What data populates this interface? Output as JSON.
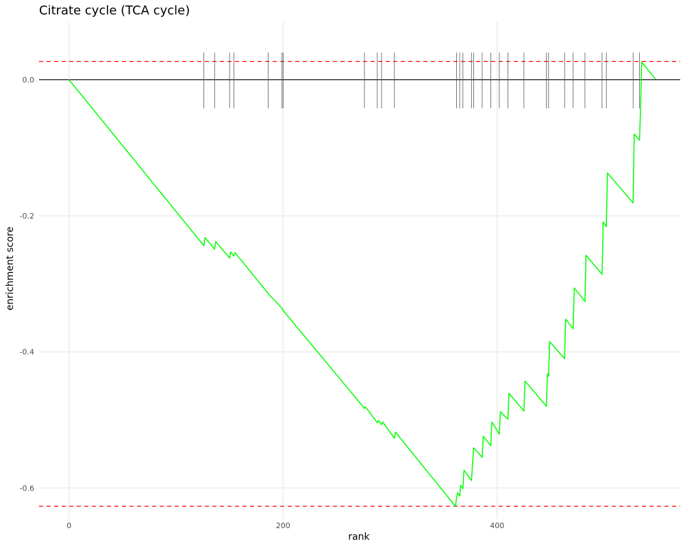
{
  "chart_data": {
    "type": "line",
    "title": "Citrate cycle (TCA cycle)",
    "xlabel": "rank",
    "ylabel": "enrichment score",
    "xlim": [
      -28,
      571
    ],
    "ylim": [
      -0.645,
      0.085
    ],
    "x_ticks": [
      0,
      200,
      400
    ],
    "x_tick_labels": [
      "0",
      "200",
      "400"
    ],
    "y_ticks": [
      0.0,
      -0.2,
      -0.4,
      -0.6
    ],
    "y_tick_labels": [
      "0.0",
      "-0.2",
      "-0.4",
      "-0.6"
    ],
    "grid": true,
    "legend": "none",
    "threshold_lines": [
      0.027,
      -0.627
    ],
    "zero_line": 0.0,
    "gene_hit_ranks": [
      126,
      136,
      150,
      154,
      186,
      199,
      200,
      276,
      288,
      292,
      304,
      362,
      365,
      368,
      376,
      378,
      386,
      394,
      402,
      410,
      425,
      446,
      448,
      463,
      471,
      482,
      498,
      502,
      527,
      533
    ],
    "running_score_points": [
      [
        0,
        0.0
      ],
      [
        126,
        -0.244
      ],
      [
        127,
        -0.232
      ],
      [
        136,
        -0.249
      ],
      [
        137,
        -0.238
      ],
      [
        150,
        -0.262
      ],
      [
        151,
        -0.253
      ],
      [
        154,
        -0.259
      ],
      [
        155,
        -0.254
      ],
      [
        186,
        -0.314
      ],
      [
        187,
        -0.316
      ],
      [
        199,
        -0.336
      ],
      [
        200,
        -0.339
      ],
      [
        276,
        -0.483
      ],
      [
        277,
        -0.481
      ],
      [
        288,
        -0.504
      ],
      [
        289,
        -0.501
      ],
      [
        292,
        -0.507
      ],
      [
        293,
        -0.503
      ],
      [
        304,
        -0.527
      ],
      [
        305,
        -0.518
      ],
      [
        361,
        -0.627
      ],
      [
        362,
        -0.616
      ],
      [
        363,
        -0.607
      ],
      [
        365,
        -0.612
      ],
      [
        366,
        -0.596
      ],
      [
        368,
        -0.601
      ],
      [
        369,
        -0.574
      ],
      [
        376,
        -0.589
      ],
      [
        378,
        -0.541
      ],
      [
        386,
        -0.555
      ],
      [
        387,
        -0.524
      ],
      [
        394,
        -0.538
      ],
      [
        395,
        -0.503
      ],
      [
        402,
        -0.521
      ],
      [
        403,
        -0.488
      ],
      [
        410,
        -0.499
      ],
      [
        411,
        -0.461
      ],
      [
        425,
        -0.487
      ],
      [
        426,
        -0.443
      ],
      [
        446,
        -0.48
      ],
      [
        447,
        -0.432
      ],
      [
        448,
        -0.436
      ],
      [
        449,
        -0.385
      ],
      [
        463,
        -0.41
      ],
      [
        464,
        -0.352
      ],
      [
        471,
        -0.366
      ],
      [
        472,
        -0.306
      ],
      [
        482,
        -0.326
      ],
      [
        483,
        -0.258
      ],
      [
        498,
        -0.286
      ],
      [
        499,
        -0.209
      ],
      [
        502,
        -0.216
      ],
      [
        503,
        -0.137
      ],
      [
        527,
        -0.181
      ],
      [
        528,
        -0.08
      ],
      [
        533,
        -0.089
      ],
      [
        534,
        -0.038
      ],
      [
        535,
        0.026
      ],
      [
        548,
        0.001
      ]
    ],
    "colors": {
      "line": "#00ff00",
      "threshold": "#ff0000",
      "zero_line": "#000000",
      "hits": "#555555",
      "grid": "#ebebeb",
      "tick_label": "#4d4d4d"
    }
  }
}
